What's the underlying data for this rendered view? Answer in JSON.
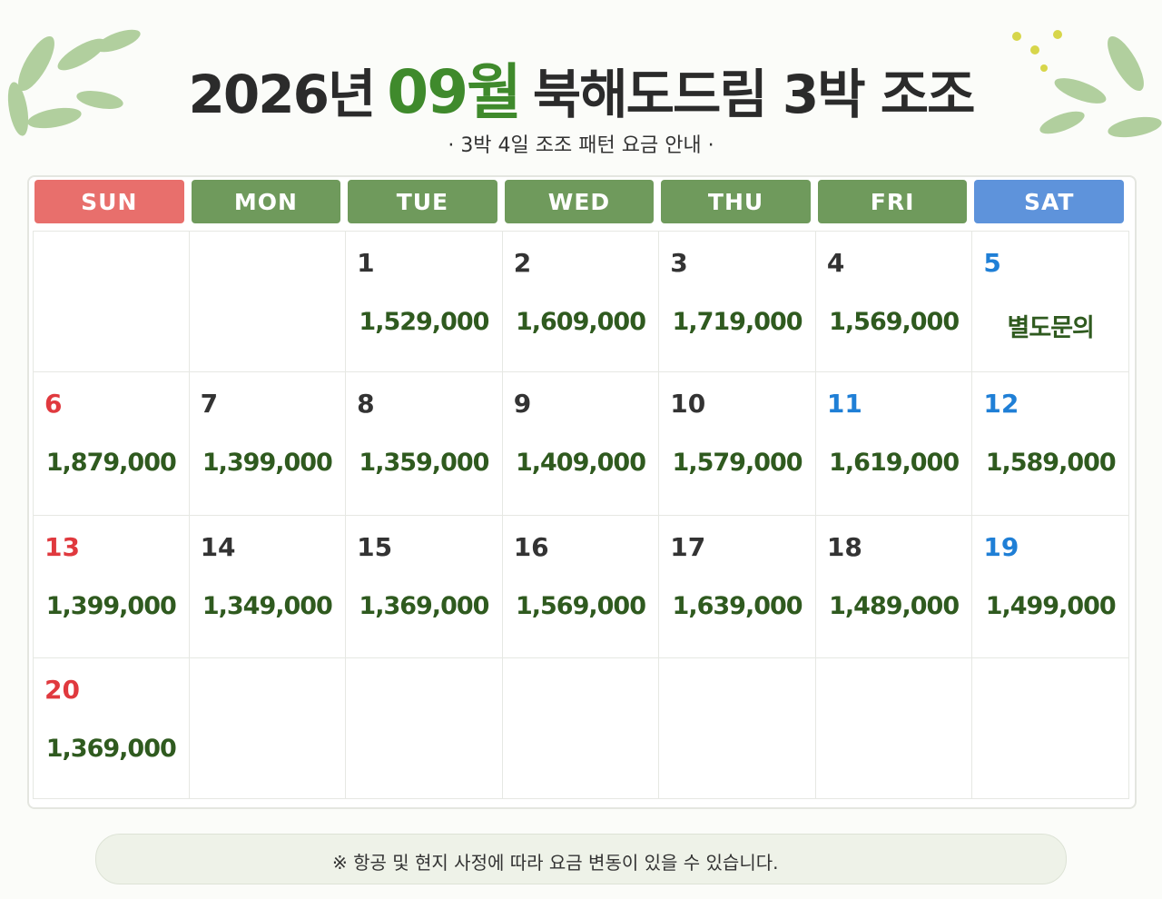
{
  "header": {
    "title_year": "2026년",
    "title_month": "09월",
    "title_rest": "북해도드림 3박 조조",
    "subtitle": "· 3박 4일 조조 패턴 요금 안내 ·"
  },
  "calendar": {
    "weekdays": [
      {
        "label": "SUN",
        "color": "#e86f6c"
      },
      {
        "label": "MON",
        "color": "#6f9a5c"
      },
      {
        "label": "TUE",
        "color": "#6f9a5c"
      },
      {
        "label": "WED",
        "color": "#6f9a5c"
      },
      {
        "label": "THU",
        "color": "#6f9a5c"
      },
      {
        "label": "FRI",
        "color": "#6f9a5c"
      },
      {
        "label": "SAT",
        "color": "#5e93db"
      }
    ],
    "weeks": [
      [
        null,
        null,
        {
          "day": 1,
          "price": "1,529,000",
          "day_color": "#333333"
        },
        {
          "day": 2,
          "price": "1,609,000",
          "day_color": "#333333"
        },
        {
          "day": 3,
          "price": "1,719,000",
          "day_color": "#333333"
        },
        {
          "day": 4,
          "price": "1,569,000",
          "day_color": "#333333"
        },
        {
          "day": 5,
          "price": "별도문의",
          "day_color": "#1f7fd6"
        }
      ],
      [
        {
          "day": 6,
          "price": "1,879,000",
          "day_color": "#e0393e"
        },
        {
          "day": 7,
          "price": "1,399,000",
          "day_color": "#333333"
        },
        {
          "day": 8,
          "price": "1,359,000",
          "day_color": "#333333"
        },
        {
          "day": 9,
          "price": "1,409,000",
          "day_color": "#333333"
        },
        {
          "day": 10,
          "price": "1,579,000",
          "day_color": "#333333"
        },
        {
          "day": 11,
          "price": "1,619,000",
          "day_color": "#1f7fd6"
        },
        {
          "day": 12,
          "price": "1,589,000",
          "day_color": "#1f7fd6"
        }
      ],
      [
        {
          "day": 13,
          "price": "1,399,000",
          "day_color": "#e0393e"
        },
        {
          "day": 14,
          "price": "1,349,000",
          "day_color": "#333333"
        },
        {
          "day": 15,
          "price": "1,369,000",
          "day_color": "#333333"
        },
        {
          "day": 16,
          "price": "1,569,000",
          "day_color": "#333333"
        },
        {
          "day": 17,
          "price": "1,639,000",
          "day_color": "#333333"
        },
        {
          "day": 18,
          "price": "1,489,000",
          "day_color": "#333333"
        },
        {
          "day": 19,
          "price": "1,499,000",
          "day_color": "#1f7fd6"
        }
      ],
      [
        {
          "day": 20,
          "price": "1,369,000",
          "day_color": "#e0393e"
        },
        null,
        null,
        null,
        null,
        null,
        null
      ]
    ]
  },
  "notice": {
    "text": "※ 항공 및 현지 사정에 따라 요금 변동이 있을 수 있습니다."
  }
}
